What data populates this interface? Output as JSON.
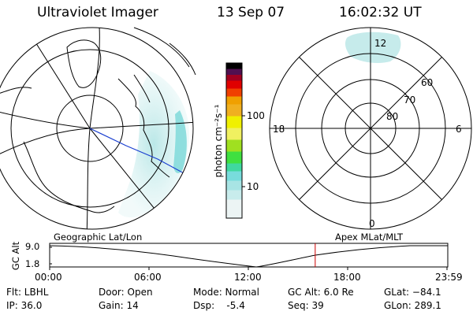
{
  "header": {
    "instrument": "Ultraviolet Imager",
    "date": "13 Sep 07",
    "time": "16:02:32 UT"
  },
  "colorbar": {
    "unit_label": "photon cm⁻²s⁻¹",
    "ticks": [
      "100",
      "10"
    ]
  },
  "polar_plot": {
    "mlt_labels": {
      "top": "12",
      "bottom": "0",
      "left": "18",
      "right": "6"
    },
    "lat_labels": [
      "60",
      "70",
      "80"
    ]
  },
  "timeline": {
    "left_title": "Geographic Lat/Lon",
    "right_title": "Apex MLat/MLT",
    "y_axis_label": "GC Alt",
    "y_ticks": [
      "9.0",
      "1.8"
    ],
    "x_ticks": [
      "00:00",
      "06:00",
      "12:00",
      "18:00",
      "23:59"
    ],
    "current_time_marker_hours": 16.04
  },
  "footer": {
    "flt": "Flt: LBHL",
    "ip": "IP: 36.0",
    "door": "Door: Open",
    "gain": "Gain: 14",
    "mode": "Mode: Normal",
    "dsp": "Dsp:    -5.4",
    "gc_alt": "GC Alt: 6.0 Re",
    "seq": "Seq: 39",
    "glat": "GLat: −84.1",
    "glon": "GLon: 289.1"
  },
  "colors": {
    "aurora": "#a8dede",
    "aurora_bright": "#7fd9d9",
    "marker": "#cc0000",
    "colorbar": [
      "#ecf4f4",
      "#c8ecec",
      "#78dcdc",
      "#40d8a0",
      "#40e040",
      "#a0e020",
      "#f0f000",
      "#f0a000",
      "#f04000",
      "#e00000",
      "#a00020",
      "#501050",
      "#000000"
    ]
  }
}
